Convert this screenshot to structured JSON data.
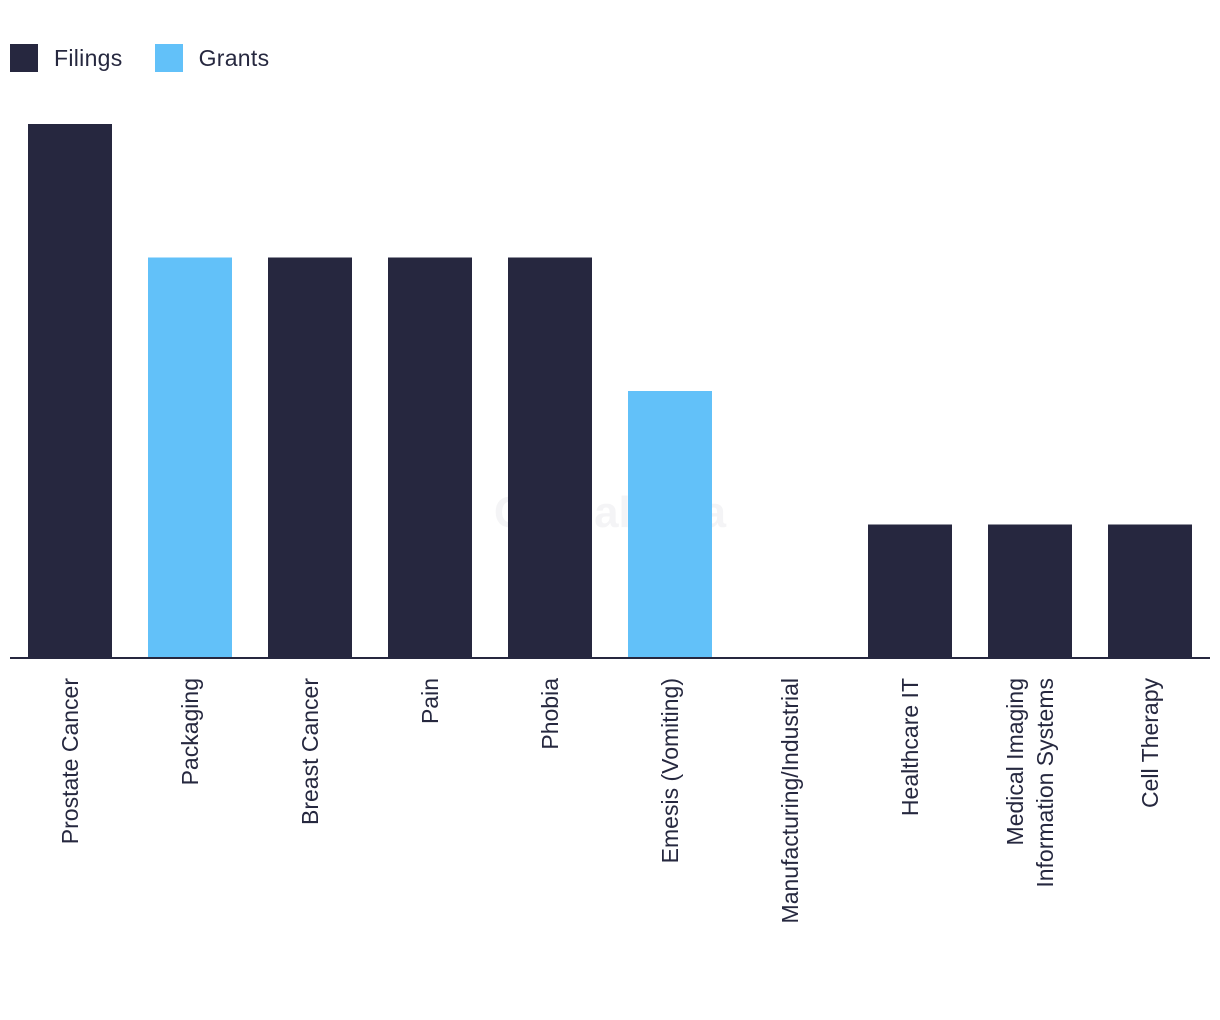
{
  "legend": [
    {
      "label": "Filings",
      "color": "#26273f"
    },
    {
      "label": "Grants",
      "color": "#62c1f9"
    }
  ],
  "watermark": "GlobalData",
  "chart_data": {
    "type": "bar",
    "categories": [
      "Prostate Cancer",
      "Packaging",
      "Breast Cancer",
      "Pain",
      "Phobia",
      "Emesis (Vomiting)",
      "Manufacturing/Industrial",
      "Healthcare IT",
      "Medical Imaging Information Systems",
      "Cell Therapy"
    ],
    "category_label_lines": [
      [
        "Prostate Cancer"
      ],
      [
        "Packaging"
      ],
      [
        "Breast Cancer"
      ],
      [
        "Pain"
      ],
      [
        "Phobia"
      ],
      [
        "Emesis (Vomiting)"
      ],
      [
        "Manufacturing/Industrial"
      ],
      [
        "Healthcare IT"
      ],
      [
        "Medical Imaging",
        "Information Systems"
      ],
      [
        "Cell Therapy"
      ]
    ],
    "values": [
      4,
      3,
      3,
      3,
      3,
      2,
      0,
      1,
      1,
      1
    ],
    "series_of_bar": [
      "Filings",
      "Grants",
      "Filings",
      "Filings",
      "Filings",
      "Grants",
      "Filings",
      "Filings",
      "Filings",
      "Filings"
    ],
    "ylim": [
      0,
      4
    ],
    "grid": false,
    "legend_position": "top-left",
    "title": "",
    "xlabel": "",
    "ylabel": ""
  }
}
